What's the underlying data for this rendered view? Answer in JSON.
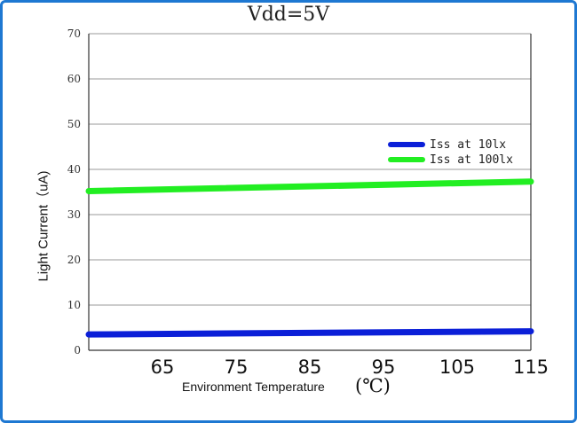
{
  "chart_data": {
    "type": "line",
    "title": "Vdd=5V",
    "xlabel": "Environment Temperature",
    "xlabel_unit": "(℃)",
    "ylabel": "Light Current（uA)",
    "x_ticks": [
      "65",
      "75",
      "85",
      "95",
      "105",
      "115"
    ],
    "y_ticks": [
      "0",
      "10",
      "20",
      "30",
      "40",
      "50",
      "60",
      "70"
    ],
    "xlim": [
      55,
      115
    ],
    "ylim": [
      0,
      70
    ],
    "grid": "horizontal",
    "legend_position": "right",
    "series": [
      {
        "name": "Iss at 10lx",
        "color": "#0b1fd8",
        "x": [
          55,
          115
        ],
        "y": [
          3.5,
          4.2
        ]
      },
      {
        "name": "Iss at 100lx",
        "color": "#22ee22",
        "x": [
          55,
          115
        ],
        "y": [
          35.2,
          37.3
        ]
      }
    ]
  }
}
